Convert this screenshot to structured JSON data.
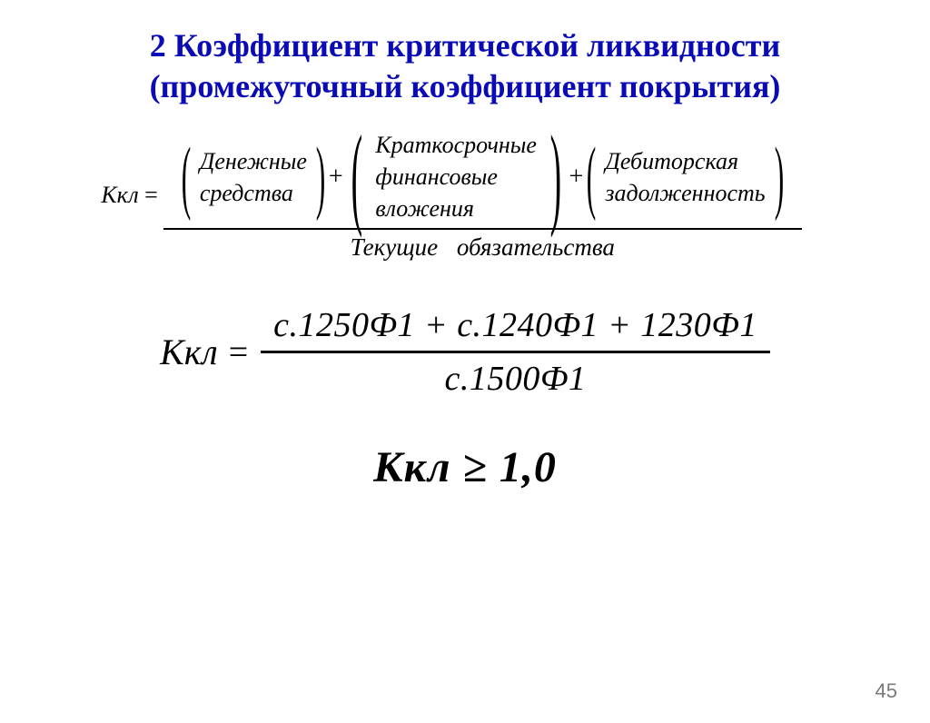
{
  "title": {
    "line1": "2 Коэффициент критической ликвидности",
    "line2": "(промежуточный коэффициент покрытия)",
    "color": "#0b0bb5",
    "fontsize": 36
  },
  "formula1": {
    "lhs": "Ккл",
    "eq": "=",
    "term1": {
      "line1": "Денежные",
      "line2": "средства"
    },
    "plus1": "+",
    "term2": {
      "line1": "Краткосрочные",
      "line2": "финансовые",
      "line3": "вложения"
    },
    "plus2": "+",
    "term3": {
      "line1": "Дебиторская",
      "line2": "задолженность"
    },
    "denominator": "Текущие обязательства"
  },
  "formula2": {
    "lhs": "Ккл",
    "eq": "=",
    "numerator": "с.1250Ф1 + с.1240Ф1 + 1230Ф1",
    "denominator": "с.1500Ф1"
  },
  "formula3": {
    "text": "Ккл ≥ 1,0"
  },
  "page_number": "45",
  "colors": {
    "title": "#0b0bb5",
    "body": "#000000",
    "background": "#ffffff",
    "pagenum": "#7a7a7a"
  }
}
